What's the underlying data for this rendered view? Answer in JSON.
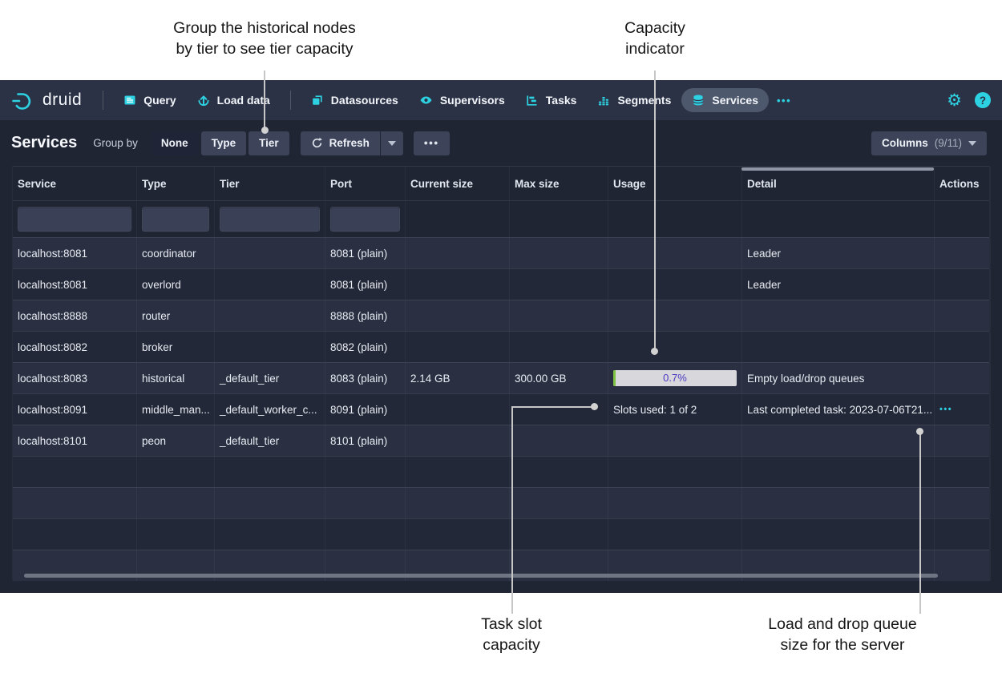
{
  "annotations": {
    "group_tier": "Group the historical nodes\nby tier to see tier capacity",
    "capacity": "Capacity\nindicator",
    "task_slot": "Task slot\ncapacity",
    "load_drop": "Load and drop queue\nsize for the server"
  },
  "navbar": {
    "logo_text": "druid",
    "items": [
      {
        "label": "Query",
        "icon": "query-icon",
        "active": false,
        "sep_before": false
      },
      {
        "label": "Load data",
        "icon": "load-data-icon",
        "active": false,
        "sep_before": false
      },
      {
        "label": "Datasources",
        "icon": "datasources-icon",
        "active": false,
        "sep_before": true
      },
      {
        "label": "Supervisors",
        "icon": "supervisors-icon",
        "active": false,
        "sep_before": false
      },
      {
        "label": "Tasks",
        "icon": "tasks-icon",
        "active": false,
        "sep_before": false
      },
      {
        "label": "Segments",
        "icon": "segments-icon",
        "active": false,
        "sep_before": false
      },
      {
        "label": "Services",
        "icon": "services-icon",
        "active": true,
        "sep_before": false
      }
    ],
    "more_label": "•••"
  },
  "toolbar": {
    "title": "Services",
    "group_by_label": "Group by",
    "group_by_options": [
      "None",
      "Type",
      "Tier"
    ],
    "group_by_active": "None",
    "refresh_label": "Refresh",
    "more_label": "•••",
    "columns_label": "Columns",
    "columns_count": "(9/11)"
  },
  "table": {
    "columns": [
      "Service",
      "Type",
      "Tier",
      "Port",
      "Current size",
      "Max size",
      "Usage",
      "Detail",
      "Actions"
    ],
    "column_keys": [
      "service",
      "type",
      "tier",
      "port",
      "current_size",
      "max_size",
      "usage",
      "detail",
      "actions"
    ],
    "filter_fields": [
      "service",
      "type",
      "tier",
      "port"
    ],
    "rows": [
      {
        "service": "localhost:8081",
        "type": "coordinator",
        "tier": "",
        "port": "8081 (plain)",
        "current_size": "",
        "max_size": "",
        "usage": "",
        "detail": "Leader",
        "actions": ""
      },
      {
        "service": "localhost:8081",
        "type": "overlord",
        "tier": "",
        "port": "8081 (plain)",
        "current_size": "",
        "max_size": "",
        "usage": "",
        "detail": "Leader",
        "actions": ""
      },
      {
        "service": "localhost:8888",
        "type": "router",
        "tier": "",
        "port": "8888 (plain)",
        "current_size": "",
        "max_size": "",
        "usage": "",
        "detail": "",
        "actions": ""
      },
      {
        "service": "localhost:8082",
        "type": "broker",
        "tier": "",
        "port": "8082 (plain)",
        "current_size": "",
        "max_size": "",
        "usage": "",
        "detail": "",
        "actions": ""
      },
      {
        "service": "localhost:8083",
        "type": "historical",
        "tier": "_default_tier",
        "port": "8083 (plain)",
        "current_size": "2.14 GB",
        "max_size": "300.00 GB",
        "usage": {
          "bar": {
            "label": "0.7%",
            "percent": 0.7
          }
        },
        "detail": "Empty load/drop queues",
        "actions": ""
      },
      {
        "service": "localhost:8091",
        "type": "middle_man...",
        "tier": "_default_worker_c...",
        "port": "8091 (plain)",
        "current_size": "",
        "max_size": "",
        "usage": "Slots used: 1 of 2",
        "detail": "Last completed task: 2023-07-06T21...",
        "actions": "•••"
      },
      {
        "service": "localhost:8101",
        "type": "peon",
        "tier": "_default_tier",
        "port": "8101 (plain)",
        "current_size": "",
        "max_size": "",
        "usage": "",
        "detail": "",
        "actions": ""
      },
      {},
      {},
      {},
      {}
    ]
  },
  "colors": {
    "accent_cyan": "#2cd1e2",
    "usage_fill_green": "#7fc140",
    "usage_text_violet": "#4a38c2",
    "annotation_line": "#c6c6c6",
    "navbar_bg": "#2c3245",
    "page_bg": "#202534"
  }
}
